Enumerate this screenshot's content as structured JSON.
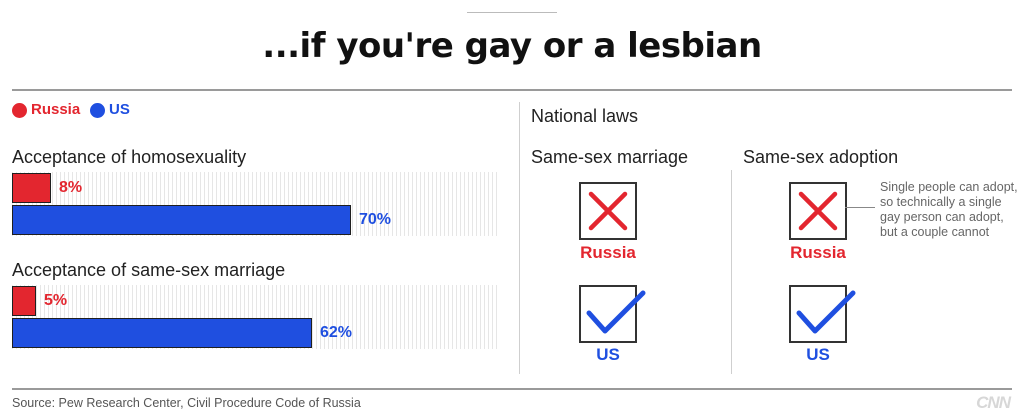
{
  "title": "...if you're gay or a lesbian",
  "legend": [
    {
      "label": "Russia",
      "color": "#e3262f"
    },
    {
      "label": "US",
      "color": "#1f4fe0"
    }
  ],
  "chart_data": {
    "type": "bar",
    "orientation": "horizontal",
    "categories": [
      "Acceptance of homosexuality",
      "Acceptance of same-sex marriage"
    ],
    "series": [
      {
        "name": "Russia",
        "values": [
          8,
          5
        ],
        "labels": [
          "8%",
          "5%"
        ],
        "color": "#e3262f"
      },
      {
        "name": "US",
        "values": [
          70,
          62
        ],
        "labels": [
          "70%",
          "62%"
        ],
        "color": "#1f4fe0"
      }
    ],
    "xlim": [
      0,
      100
    ],
    "grid": false
  },
  "laws": {
    "heading": "National laws",
    "columns": [
      {
        "title": "Same-sex marriage",
        "russia_label": "Russia",
        "russia_icon": "x-icon",
        "us_label": "US",
        "us_icon": "check-icon"
      },
      {
        "title": "Same-sex adoption",
        "russia_label": "Russia",
        "russia_icon": "x-icon",
        "us_label": "US",
        "us_icon": "check-icon"
      }
    ],
    "note": "Single people can adopt, so technically a single gay person can adopt, but a couple cannot"
  },
  "source": "Source: Pew Research Center, Civil Procedure Code of Russia",
  "logo": "CNN",
  "colors": {
    "russia": "#e3262f",
    "us": "#1f4fe0",
    "x_mark": "#e3262f",
    "check_mark": "#1f4fe0"
  }
}
